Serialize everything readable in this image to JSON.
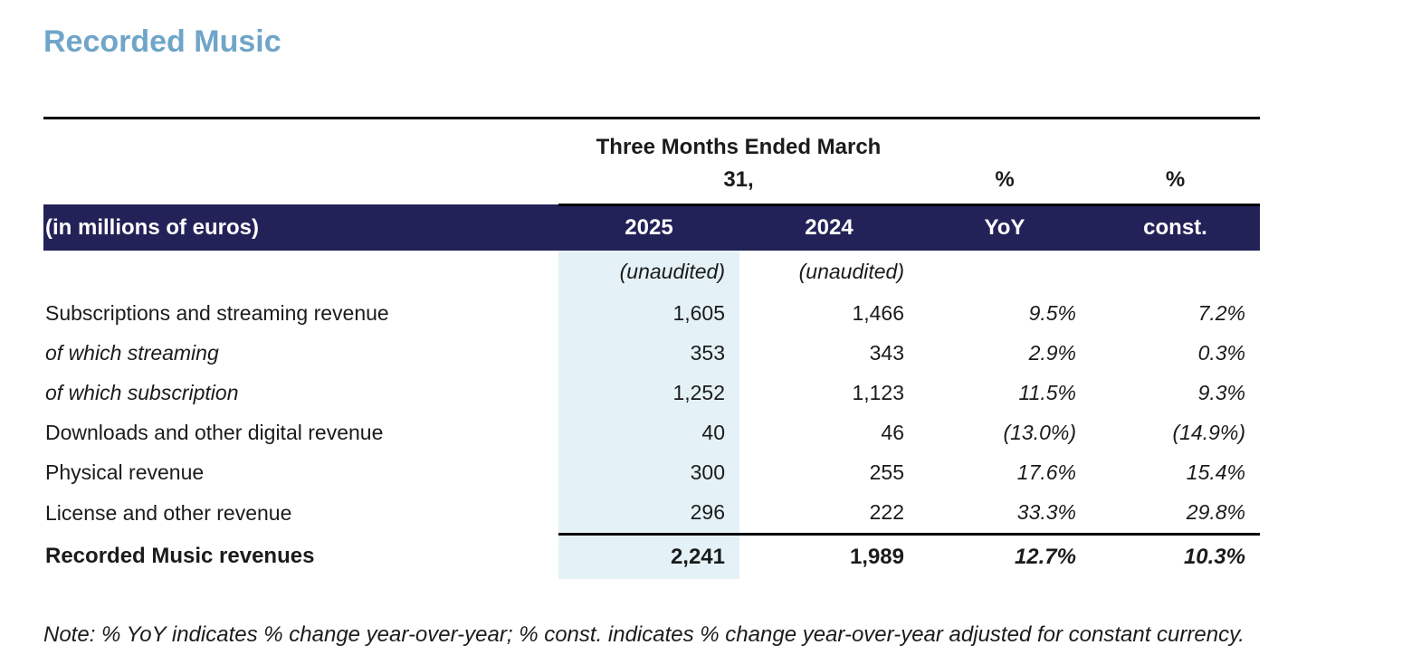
{
  "page": {
    "title": "Recorded Music"
  },
  "table": {
    "period_header": "Three Months Ended March 31,",
    "pct_header_yoy": "%",
    "pct_header_const": "%",
    "header": {
      "label": "(in millions of euros)",
      "col_2025": "2025",
      "col_2024": "2024",
      "col_yoy": "YoY",
      "col_const": "const."
    },
    "subheader": {
      "col_2025": "(unaudited)",
      "col_2024": "(unaudited)"
    },
    "rows": [
      {
        "label": "Subscriptions and streaming revenue",
        "v2025": "1,605",
        "v2024": "1,466",
        "yoy": "9.5%",
        "const": "7.2%"
      },
      {
        "label": "of which streaming",
        "v2025": "353",
        "v2024": "343",
        "yoy": "2.9%",
        "const": "0.3%"
      },
      {
        "label": "of which subscription",
        "v2025": "1,252",
        "v2024": "1,123",
        "yoy": "11.5%",
        "const": "9.3%"
      },
      {
        "label": "Downloads and other digital revenue",
        "v2025": "40",
        "v2024": "46",
        "yoy": "(13.0%)",
        "const": "(14.9%)"
      },
      {
        "label": "Physical revenue",
        "v2025": "300",
        "v2024": "255",
        "yoy": "17.6%",
        "const": "15.4%"
      },
      {
        "label": "License and other revenue",
        "v2025": "296",
        "v2024": "222",
        "yoy": "33.3%",
        "const": "29.8%"
      }
    ],
    "total": {
      "label": "Recorded Music revenues",
      "v2025": "2,241",
      "v2024": "1,989",
      "yoy": "12.7%",
      "const": "10.3%"
    }
  },
  "note": "Note: % YoY indicates % change year-over-year; % const. indicates % change year-over-year adjusted for constant currency.",
  "colors": {
    "title_accent": "#6FA5C8",
    "header_bg": "#232258",
    "header_text": "#FFFFFF",
    "highlight_col": "#E4F2F7",
    "rule_color": "#000000"
  }
}
